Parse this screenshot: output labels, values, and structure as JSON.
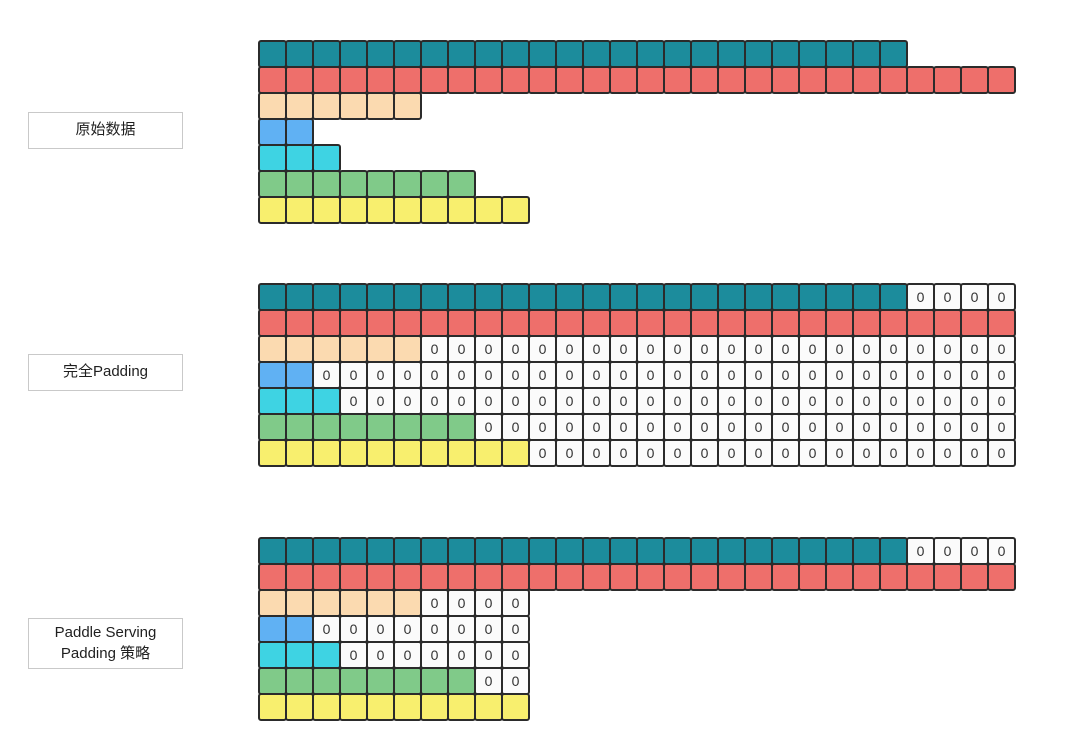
{
  "zero_label": "0",
  "colors": {
    "teal": "#1c8c9c",
    "red": "#ee6f6b",
    "peach": "#fbdab0",
    "blue": "#60b1f3",
    "cyan": "#3ed3e3",
    "green": "#80ca89",
    "yellow": "#f8ef6e",
    "zero_bg": "#fbfbfb",
    "border": "#2b2b2b"
  },
  "sections": [
    {
      "id": "original-data",
      "label_lines": [
        "原始数据"
      ],
      "rows": [
        {
          "color_key": "teal",
          "filled": 24,
          "zeros": 0
        },
        {
          "color_key": "red",
          "filled": 28,
          "zeros": 0
        },
        {
          "color_key": "peach",
          "filled": 6,
          "zeros": 0
        },
        {
          "color_key": "blue",
          "filled": 2,
          "zeros": 0
        },
        {
          "color_key": "cyan",
          "filled": 3,
          "zeros": 0
        },
        {
          "color_key": "green",
          "filled": 8,
          "zeros": 0
        },
        {
          "color_key": "yellow",
          "filled": 10,
          "zeros": 0
        }
      ]
    },
    {
      "id": "full-padding",
      "label_lines": [
        "完全Padding"
      ],
      "rows": [
        {
          "color_key": "teal",
          "filled": 24,
          "zeros": 4
        },
        {
          "color_key": "red",
          "filled": 28,
          "zeros": 0
        },
        {
          "color_key": "peach",
          "filled": 6,
          "zeros": 22
        },
        {
          "color_key": "blue",
          "filled": 2,
          "zeros": 26
        },
        {
          "color_key": "cyan",
          "filled": 3,
          "zeros": 25
        },
        {
          "color_key": "green",
          "filled": 8,
          "zeros": 20
        },
        {
          "color_key": "yellow",
          "filled": 10,
          "zeros": 18
        }
      ]
    },
    {
      "id": "paddle-serving-padding",
      "label_lines": [
        "Paddle Serving",
        "Padding 策略"
      ],
      "rows": [
        {
          "color_key": "teal",
          "filled": 24,
          "zeros": 4
        },
        {
          "color_key": "red",
          "filled": 28,
          "zeros": 0
        },
        {
          "color_key": "peach",
          "filled": 6,
          "zeros": 4
        },
        {
          "color_key": "blue",
          "filled": 2,
          "zeros": 8
        },
        {
          "color_key": "cyan",
          "filled": 3,
          "zeros": 7
        },
        {
          "color_key": "green",
          "filled": 8,
          "zeros": 2
        },
        {
          "color_key": "yellow",
          "filled": 10,
          "zeros": 0
        }
      ]
    }
  ]
}
